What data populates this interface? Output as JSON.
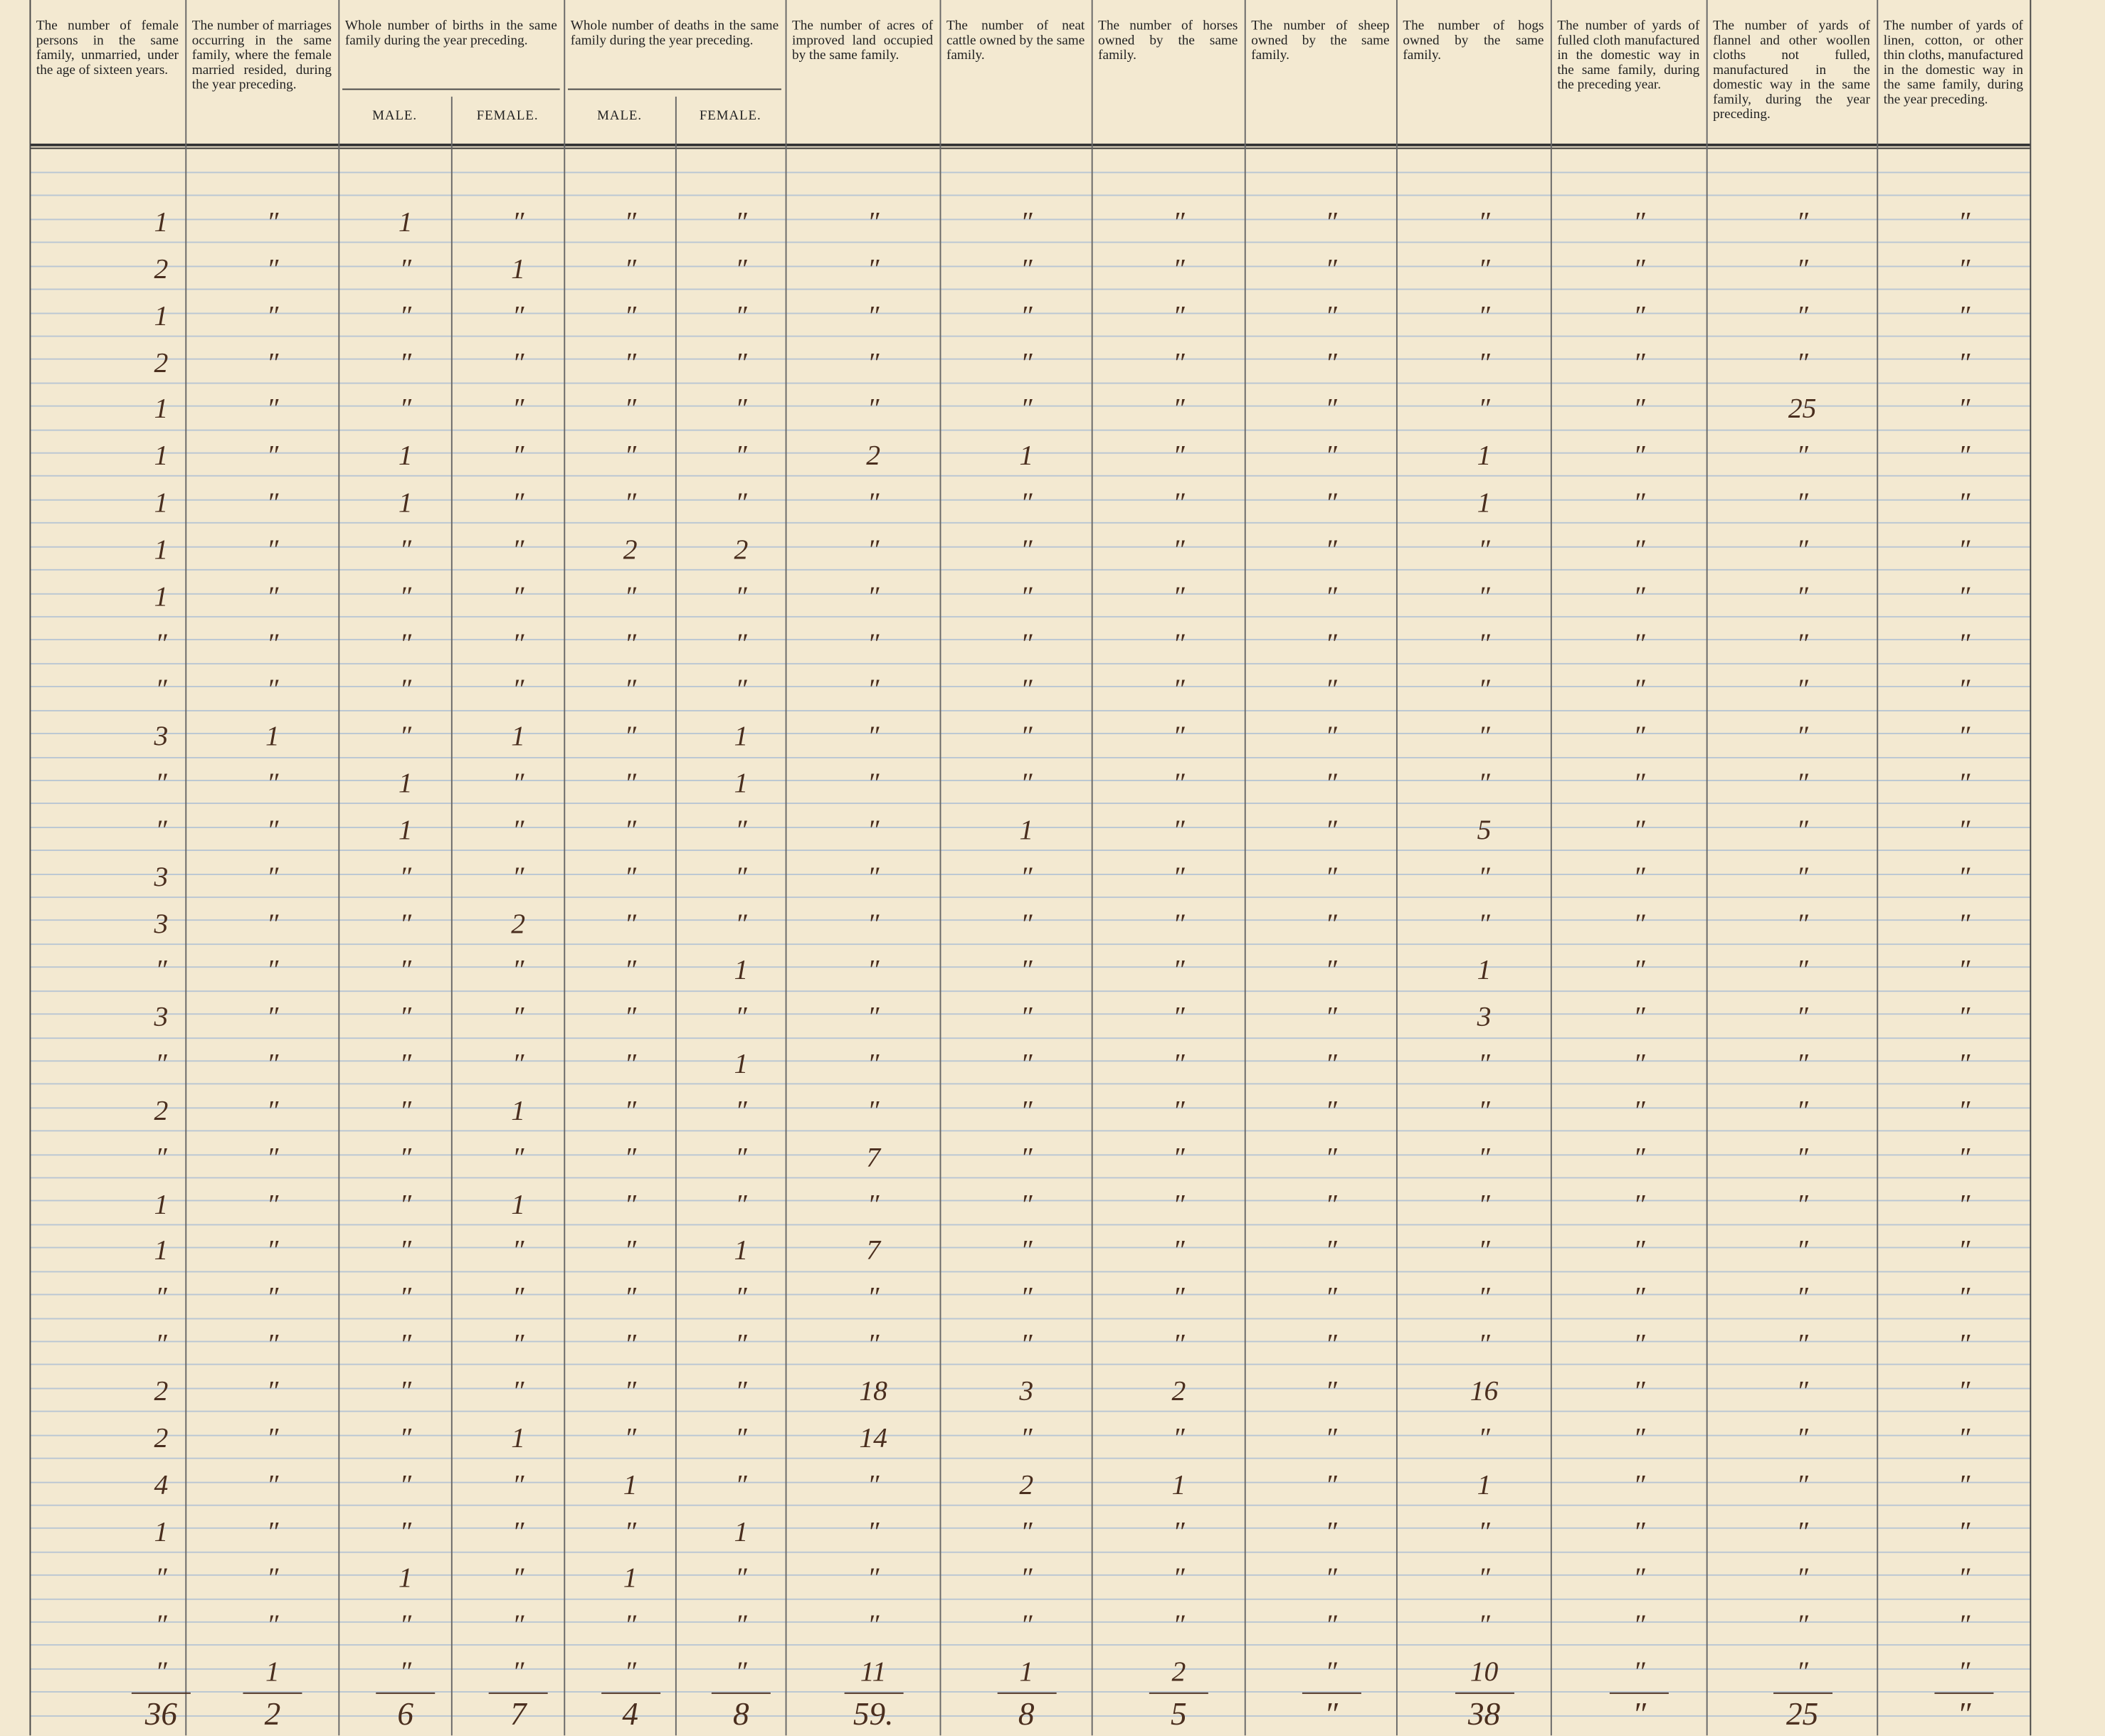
{
  "header": {
    "columns": [
      {
        "label": "The number of female persons in the same family, unmarried, under the age of sixteen years."
      },
      {
        "label": "The number of marriages occurring in the same family, where the female married resided, during the year preceding."
      },
      {
        "label": "Whole number of births in the same family during the year preceding.",
        "subcolumns": [
          "MALE.",
          "FEMALE."
        ]
      },
      {
        "label": "Whole number of deaths in the same family during the year preceding.",
        "subcolumns": [
          "MALE.",
          "FEMALE."
        ]
      },
      {
        "label": "The number of acres of improved land occupied by the same family."
      },
      {
        "label": "The number of neat cattle owned by the same family."
      },
      {
        "label": "The number of horses owned by the same family."
      },
      {
        "label": "The number of sheep owned by the same family."
      },
      {
        "label": "The number of hogs owned by the same family."
      },
      {
        "label": "The number of yards of fulled cloth manufactured in the domestic way in the same family, during the preceding year."
      },
      {
        "label": "The number of yards of flannel and other woollen cloths not fulled, manufactured in the domestic way in the same family, during the year preceding."
      },
      {
        "label": "The number of yards of linen, cotton, or other thin cloths, manufactured in the domestic way in the same family, during the year preceding."
      }
    ]
  },
  "table": {
    "rows": [
      [
        "1",
        "″",
        "1",
        "″",
        "″",
        "″",
        "″",
        "″",
        "″",
        "″",
        "″",
        "″",
        "″",
        "″"
      ],
      [
        "2",
        "″",
        "″",
        "1",
        "″",
        "″",
        "″",
        "″",
        "″",
        "″",
        "″",
        "″",
        "″",
        "″"
      ],
      [
        "1",
        "″",
        "″",
        "″",
        "″",
        "″",
        "″",
        "″",
        "″",
        "″",
        "″",
        "″",
        "″",
        "″"
      ],
      [
        "2",
        "″",
        "″",
        "″",
        "″",
        "″",
        "″",
        "″",
        "″",
        "″",
        "″",
        "″",
        "″",
        "″"
      ],
      [
        "1",
        "″",
        "″",
        "″",
        "″",
        "″",
        "″",
        "″",
        "″",
        "″",
        "″",
        "″",
        "25",
        "″"
      ],
      [
        "1",
        "″",
        "1",
        "″",
        "″",
        "″",
        "2",
        "1",
        "″",
        "″",
        "1",
        "″",
        "″",
        "″"
      ],
      [
        "1",
        "″",
        "1",
        "″",
        "″",
        "″",
        "″",
        "″",
        "″",
        "″",
        "1",
        "″",
        "″",
        "″"
      ],
      [
        "1",
        "″",
        "″",
        "″",
        "2",
        "2",
        "″",
        "″",
        "″",
        "″",
        "″",
        "″",
        "″",
        "″"
      ],
      [
        "1",
        "″",
        "″",
        "″",
        "″",
        "″",
        "″",
        "″",
        "″",
        "″",
        "″",
        "″",
        "″",
        "″"
      ],
      [
        "″",
        "″",
        "″",
        "″",
        "″",
        "″",
        "″",
        "″",
        "″",
        "″",
        "″",
        "″",
        "″",
        "″"
      ],
      [
        "″",
        "″",
        "″",
        "″",
        "″",
        "″",
        "″",
        "″",
        "″",
        "″",
        "″",
        "″",
        "″",
        "″"
      ],
      [
        "3",
        "1",
        "″",
        "1",
        "″",
        "1",
        "″",
        "″",
        "″",
        "″",
        "″",
        "″",
        "″",
        "″"
      ],
      [
        "″",
        "″",
        "1",
        "″",
        "″",
        "1",
        "″",
        "″",
        "″",
        "″",
        "″",
        "″",
        "″",
        "″"
      ],
      [
        "″",
        "″",
        "1",
        "″",
        "″",
        "″",
        "″",
        "1",
        "″",
        "″",
        "5",
        "″",
        "″",
        "″"
      ],
      [
        "3",
        "″",
        "″",
        "″",
        "″",
        "″",
        "″",
        "″",
        "″",
        "″",
        "″",
        "″",
        "″",
        "″"
      ],
      [
        "3",
        "″",
        "″",
        "2",
        "″",
        "″",
        "″",
        "″",
        "″",
        "″",
        "″",
        "″",
        "″",
        "″"
      ],
      [
        "″",
        "″",
        "″",
        "″",
        "″",
        "1",
        "″",
        "″",
        "″",
        "″",
        "1",
        "″",
        "″",
        "″"
      ],
      [
        "3",
        "″",
        "″",
        "″",
        "″",
        "″",
        "″",
        "″",
        "″",
        "″",
        "3",
        "″",
        "″",
        "″"
      ],
      [
        "″",
        "″",
        "″",
        "″",
        "″",
        "1",
        "″",
        "″",
        "″",
        "″",
        "″",
        "″",
        "″",
        "″"
      ],
      [
        "2",
        "″",
        "″",
        "1",
        "″",
        "″",
        "″",
        "″",
        "″",
        "″",
        "″",
        "″",
        "″",
        "″"
      ],
      [
        "″",
        "″",
        "″",
        "″",
        "″",
        "″",
        "7",
        "″",
        "″",
        "″",
        "″",
        "″",
        "″",
        "″"
      ],
      [
        "1",
        "″",
        "″",
        "1",
        "″",
        "″",
        "″",
        "″",
        "″",
        "″",
        "″",
        "″",
        "″",
        "″"
      ],
      [
        "1",
        "″",
        "″",
        "″",
        "″",
        "1",
        "7",
        "″",
        "″",
        "″",
        "″",
        "″",
        "″",
        "″"
      ],
      [
        "″",
        "″",
        "″",
        "″",
        "″",
        "″",
        "″",
        "″",
        "″",
        "″",
        "″",
        "″",
        "″",
        "″"
      ],
      [
        "″",
        "″",
        "″",
        "″",
        "″",
        "″",
        "″",
        "″",
        "″",
        "″",
        "″",
        "″",
        "″",
        "″"
      ],
      [
        "2",
        "″",
        "″",
        "″",
        "″",
        "″",
        "18",
        "3",
        "2",
        "″",
        "16",
        "″",
        "″",
        "″"
      ],
      [
        "2",
        "″",
        "″",
        "1",
        "″",
        "″",
        "14",
        "″",
        "″",
        "″",
        "″",
        "″",
        "″",
        "″"
      ],
      [
        "4",
        "″",
        "″",
        "″",
        "1",
        "″",
        "″",
        "2",
        "1",
        "″",
        "1",
        "″",
        "″",
        "″"
      ],
      [
        "1",
        "″",
        "″",
        "″",
        "″",
        "1",
        "″",
        "″",
        "″",
        "″",
        "″",
        "″",
        "″",
        "″"
      ],
      [
        "″",
        "″",
        "1",
        "″",
        "1",
        "″",
        "″",
        "″",
        "″",
        "″",
        "″",
        "″",
        "″",
        "″"
      ],
      [
        "″",
        "″",
        "″",
        "″",
        "″",
        "″",
        "″",
        "″",
        "″",
        "″",
        "″",
        "″",
        "″",
        "″"
      ],
      [
        "″",
        "1",
        "″",
        "″",
        "″",
        "″",
        "11",
        "1",
        "2",
        "″",
        "10",
        "″",
        "″",
        "″"
      ]
    ],
    "totals": [
      "36",
      "2",
      "6",
      "7",
      "4",
      "8",
      "59.",
      "8",
      "5",
      "″",
      "38",
      "″",
      "25",
      "″"
    ]
  }
}
